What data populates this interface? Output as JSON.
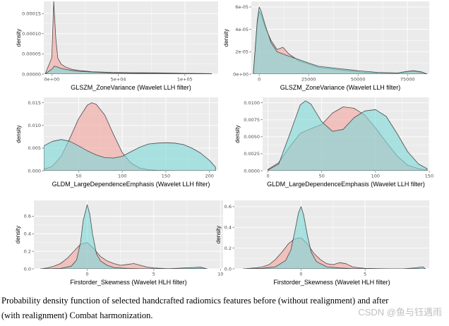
{
  "figure": {
    "caption_line1": "Probability density function of selected handcrafted radiomics features before (without realignment) and after",
    "caption_line2": "(with realignment) Combat harmonization.",
    "watermark": "CSDN @鱼与钰遇雨",
    "colors": {
      "panel_bg": "#ebebeb",
      "grid": "#ffffff",
      "before": "#f4a6a1",
      "after": "#7fd8d8",
      "outline": "#4a4a4a"
    }
  },
  "chart_data": [
    {
      "id": "p1",
      "type": "area",
      "xlabel": "GLSZM_ZoneVariance (Wavelet LLH filter)",
      "ylabel": "density",
      "xlim": [
        -6000,
        125000
      ],
      "ylim": [
        0,
        0.00018
      ],
      "xticks": [
        0,
        50000,
        100000
      ],
      "xtick_labels": [
        "0e+00",
        "5e+04",
        "1e+05"
      ],
      "yticks": [
        0,
        5e-05,
        0.0001,
        0.00015
      ],
      "ytick_labels": [
        "0.00000",
        "0.00005",
        "0.00010",
        "0.00015"
      ],
      "series": [
        {
          "name": "before",
          "x": [
            -5000,
            0,
            1500,
            3000,
            4500,
            7000,
            10000,
            15000,
            20000,
            30000,
            45000,
            60000,
            80000,
            100000,
            120000
          ],
          "y": [
            0,
            4e-05,
            0.00018,
            9e-05,
            4e-05,
            2.5e-05,
            1.8e-05,
            1.2e-05,
            9e-06,
            6e-06,
            4e-06,
            3.5e-06,
            3e-06,
            2e-06,
            1e-06
          ]
        },
        {
          "name": "after",
          "x": [
            -5000,
            0,
            2000,
            4000,
            7000,
            10000,
            15000,
            20000,
            30000,
            45000,
            60000,
            80000,
            100000,
            120000
          ],
          "y": [
            0,
            1.2e-05,
            2e-05,
            1.8e-05,
            1.4e-05,
            1.2e-05,
            9e-06,
            7e-06,
            5e-06,
            3e-06,
            2e-06,
            2e-06,
            1.5e-06,
            1e-06
          ]
        }
      ]
    },
    {
      "id": "p2",
      "type": "area",
      "xlabel": "GLSZM_ZoneVariance (Wavelet LLH filter)",
      "ylabel": "density",
      "xlim": [
        -4000,
        86000
      ],
      "ylim": [
        0,
        6.5e-05
      ],
      "xticks": [
        0,
        25000,
        50000,
        75000
      ],
      "xtick_labels": [
        "0",
        "25000",
        "50000",
        "75000"
      ],
      "yticks": [
        0,
        2e-05,
        4e-05,
        6e-05
      ],
      "ytick_labels": [
        "0e+00",
        "2e-05",
        "4e-05",
        "6e-05"
      ],
      "series": [
        {
          "name": "before",
          "x": [
            -3000,
            -1000,
            0,
            1000,
            3000,
            6000,
            9000,
            12000,
            15000,
            20000,
            25000,
            30000,
            40000,
            50000,
            60000,
            70000,
            75000,
            78000,
            82000,
            85000
          ],
          "y": [
            0,
            4.5e-05,
            5.6e-05,
            5.3e-05,
            4.2e-05,
            3e-05,
            2.2e-05,
            2.4e-05,
            1.8e-05,
            1.2e-05,
            9e-06,
            6e-06,
            4e-06,
            2e-06,
            1e-06,
            8e-07,
            2e-06,
            2.5e-06,
            1.5e-06,
            0
          ]
        },
        {
          "name": "after",
          "x": [
            -3000,
            -1000,
            0,
            1000,
            3000,
            6000,
            9000,
            12000,
            15000,
            20000,
            25000,
            30000,
            40000,
            50000,
            60000,
            70000,
            75000,
            78000,
            82000,
            85000
          ],
          "y": [
            0,
            4.8e-05,
            6e-05,
            5.6e-05,
            4.4e-05,
            2.8e-05,
            2e-05,
            1.8e-05,
            1.6e-05,
            1.3e-05,
            1e-05,
            7e-06,
            5e-06,
            3e-06,
            1.5e-06,
            1e-06,
            2.5e-06,
            3e-06,
            2e-06,
            0
          ]
        }
      ]
    },
    {
      "id": "p3",
      "type": "area",
      "xlabel": "GLDM_LargeDependenceEmphasis (Wavelet LLH filter)",
      "ylabel": "density",
      "xlim": [
        10,
        210
      ],
      "ylim": [
        0,
        0.0162
      ],
      "xticks": [
        50,
        100,
        150,
        200
      ],
      "xtick_labels": [
        "50",
        "100",
        "150",
        "200"
      ],
      "yticks": [
        0,
        0.005,
        0.01,
        0.015
      ],
      "ytick_labels": [
        "0.000",
        "0.005",
        "0.010",
        "0.015"
      ],
      "series": [
        {
          "name": "before",
          "x": [
            10,
            20,
            30,
            40,
            50,
            60,
            65,
            70,
            80,
            90,
            100,
            110,
            120,
            130,
            140,
            150,
            170,
            190,
            207
          ],
          "y": [
            0.0003,
            0.001,
            0.0032,
            0.0072,
            0.0115,
            0.0145,
            0.015,
            0.0147,
            0.0123,
            0.008,
            0.004,
            0.0017,
            0.0006,
            0.0002,
            0.0001,
            5e-05,
            2e-05,
            1e-05,
            0
          ]
        },
        {
          "name": "after",
          "x": [
            10,
            20,
            30,
            40,
            50,
            60,
            70,
            80,
            90,
            100,
            110,
            120,
            130,
            140,
            150,
            160,
            170,
            180,
            190,
            200,
            207
          ],
          "y": [
            0.0055,
            0.0065,
            0.0069,
            0.0065,
            0.0055,
            0.0044,
            0.0035,
            0.0029,
            0.0028,
            0.0032,
            0.0042,
            0.0052,
            0.0059,
            0.0061,
            0.0062,
            0.0061,
            0.0058,
            0.005,
            0.0039,
            0.0023,
            0.0008
          ]
        }
      ]
    },
    {
      "id": "p4",
      "type": "area",
      "xlabel": "GLDM_LargeDependenceEmphasis (Wavelet LLH filter)",
      "ylabel": "density",
      "xlim": [
        -5,
        150
      ],
      "ylim": [
        0,
        0.0108
      ],
      "xticks": [
        0,
        50,
        100,
        150
      ],
      "xtick_labels": [
        "0",
        "50",
        "100",
        "150"
      ],
      "yticks": [
        0,
        0.0025,
        0.005,
        0.0075,
        0.01
      ],
      "ytick_labels": [
        "0.0000",
        "0.0025",
        "0.0050",
        "0.0075",
        "0.0100"
      ],
      "series": [
        {
          "name": "before",
          "x": [
            0,
            10,
            20,
            30,
            40,
            50,
            60,
            70,
            80,
            90,
            100,
            110,
            120,
            130,
            140,
            148
          ],
          "y": [
            0.0002,
            0.0012,
            0.0035,
            0.0055,
            0.0062,
            0.0068,
            0.0085,
            0.0094,
            0.0092,
            0.0082,
            0.0063,
            0.0042,
            0.0022,
            0.0008,
            0.0003,
            0.0001
          ]
        },
        {
          "name": "after",
          "x": [
            0,
            10,
            20,
            30,
            35,
            40,
            50,
            60,
            70,
            80,
            90,
            100,
            110,
            120,
            130,
            140,
            148
          ],
          "y": [
            0.0001,
            0.001,
            0.0053,
            0.0097,
            0.0103,
            0.0098,
            0.0072,
            0.0058,
            0.0061,
            0.0078,
            0.0088,
            0.009,
            0.008,
            0.0055,
            0.0028,
            0.001,
            0.0003
          ]
        }
      ]
    },
    {
      "id": "p5",
      "type": "area",
      "xlabel": "Firstorder_Skewness (Wavelet HLH filter)",
      "ylabel": "density",
      "xlim": [
        -4,
        10.2
      ],
      "ylim": [
        0,
        0.78
      ],
      "xticks": [
        0,
        5,
        10
      ],
      "xtick_labels": [
        "0",
        "5",
        "10"
      ],
      "yticks": [
        0,
        0.2,
        0.4,
        0.6
      ],
      "ytick_labels": [
        "0.0",
        "0.2",
        "0.4",
        "0.6"
      ],
      "series": [
        {
          "name": "before",
          "x": [
            -3.5,
            -3,
            -2.5,
            -2,
            -1.5,
            -1,
            -0.5,
            0,
            0.5,
            1,
            1.5,
            2,
            2.5,
            3,
            3.5,
            4,
            4.5,
            5,
            6,
            7,
            8,
            8.5,
            9
          ],
          "y": [
            0,
            0.01,
            0.03,
            0.06,
            0.12,
            0.2,
            0.28,
            0.3,
            0.23,
            0.14,
            0.09,
            0.06,
            0.04,
            0.05,
            0.06,
            0.04,
            0.02,
            0.01,
            0.003,
            0.001,
            0.005,
            0.008,
            0
          ]
        },
        {
          "name": "after",
          "x": [
            -3.5,
            -2,
            -1.2,
            -0.8,
            -0.5,
            -0.3,
            0,
            0.2,
            0.4,
            0.7,
            1,
            1.5,
            2,
            3,
            4,
            6,
            8,
            8.5,
            9
          ],
          "y": [
            0,
            0.005,
            0.03,
            0.1,
            0.3,
            0.55,
            0.73,
            0.62,
            0.4,
            0.17,
            0.09,
            0.04,
            0.015,
            0.005,
            0.002,
            0.001,
            0.015,
            0.02,
            0
          ]
        }
      ]
    },
    {
      "id": "p6",
      "type": "area",
      "xlabel": "Firstorder_Skewness (Wavelet HLH filter)",
      "ylabel": "density",
      "xlim": [
        -5.2,
        10
      ],
      "ylim": [
        0,
        0.66
      ],
      "xticks": [
        0,
        5
      ],
      "xtick_labels": [
        "0",
        "5"
      ],
      "yticks": [
        0,
        0.2,
        0.4,
        0.6
      ],
      "ytick_labels": [
        "0.0",
        "0.2",
        "0.4",
        "0.6"
      ],
      "series": [
        {
          "name": "before",
          "x": [
            -4.5,
            -4,
            -3.5,
            -3,
            -2.5,
            -2,
            -1.5,
            -1,
            -0.5,
            0,
            0.5,
            1,
            1.5,
            2,
            2.5,
            3,
            3.5,
            4,
            4.5,
            5,
            6,
            7,
            8,
            9,
            9.7
          ],
          "y": [
            0,
            0.005,
            0.01,
            0.02,
            0.04,
            0.09,
            0.16,
            0.24,
            0.29,
            0.3,
            0.24,
            0.15,
            0.09,
            0.05,
            0.04,
            0.06,
            0.05,
            0.02,
            0.01,
            0.005,
            0.002,
            0.001,
            0.001,
            0.005,
            0
          ]
        },
        {
          "name": "after",
          "x": [
            -4.5,
            -3,
            -2,
            -1.2,
            -0.8,
            -0.5,
            -0.2,
            0,
            0.2,
            0.5,
            0.8,
            1.2,
            2,
            3,
            4,
            6,
            8,
            9,
            9.5,
            9.7
          ],
          "y": [
            0,
            0.005,
            0.02,
            0.08,
            0.18,
            0.35,
            0.54,
            0.6,
            0.52,
            0.32,
            0.16,
            0.07,
            0.02,
            0.008,
            0.003,
            0.001,
            0.001,
            0.01,
            0.02,
            0
          ]
        }
      ]
    }
  ]
}
